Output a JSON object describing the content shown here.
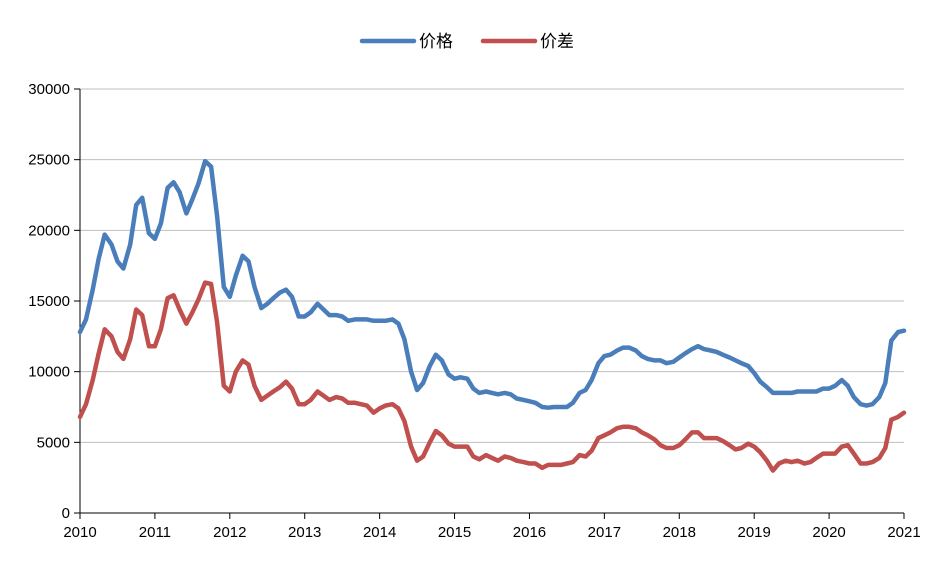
{
  "chart_data": {
    "type": "line",
    "title": "",
    "xlabel": "",
    "ylabel": "",
    "xlim": [
      2010,
      2021
    ],
    "ylim": [
      0,
      30000
    ],
    "x_ticks": [
      "2010",
      "2011",
      "2012",
      "2013",
      "2014",
      "2015",
      "2016",
      "2017",
      "2018",
      "2019",
      "2020",
      "2021"
    ],
    "y_ticks": [
      "0",
      "5000",
      "10000",
      "15000",
      "20000",
      "25000",
      "30000"
    ],
    "grid": "horizontal",
    "legend_position": "top-center",
    "series": [
      {
        "name": "价格",
        "color": "#4a7ebb",
        "points": [
          [
            2010.0,
            12800
          ],
          [
            2010.08,
            13700
          ],
          [
            2010.17,
            15800
          ],
          [
            2010.25,
            18000
          ],
          [
            2010.33,
            19700
          ],
          [
            2010.42,
            19000
          ],
          [
            2010.5,
            17800
          ],
          [
            2010.58,
            17300
          ],
          [
            2010.67,
            19000
          ],
          [
            2010.75,
            21800
          ],
          [
            2010.83,
            22300
          ],
          [
            2010.92,
            19800
          ],
          [
            2011.0,
            19400
          ],
          [
            2011.08,
            20500
          ],
          [
            2011.17,
            23000
          ],
          [
            2011.25,
            23400
          ],
          [
            2011.33,
            22700
          ],
          [
            2011.42,
            21200
          ],
          [
            2011.5,
            22200
          ],
          [
            2011.58,
            23300
          ],
          [
            2011.67,
            24900
          ],
          [
            2011.75,
            24500
          ],
          [
            2011.83,
            21000
          ],
          [
            2011.92,
            16000
          ],
          [
            2012.0,
            15300
          ],
          [
            2012.08,
            16800
          ],
          [
            2012.17,
            18200
          ],
          [
            2012.25,
            17800
          ],
          [
            2012.33,
            16000
          ],
          [
            2012.42,
            14500
          ],
          [
            2012.5,
            14800
          ],
          [
            2012.58,
            15200
          ],
          [
            2012.67,
            15600
          ],
          [
            2012.75,
            15800
          ],
          [
            2012.83,
            15300
          ],
          [
            2012.92,
            13900
          ],
          [
            2013.0,
            13900
          ],
          [
            2013.08,
            14200
          ],
          [
            2013.17,
            14800
          ],
          [
            2013.25,
            14400
          ],
          [
            2013.33,
            14000
          ],
          [
            2013.42,
            14000
          ],
          [
            2013.5,
            13900
          ],
          [
            2013.58,
            13600
          ],
          [
            2013.67,
            13700
          ],
          [
            2013.75,
            13700
          ],
          [
            2013.83,
            13700
          ],
          [
            2013.92,
            13600
          ],
          [
            2014.0,
            13600
          ],
          [
            2014.08,
            13600
          ],
          [
            2014.17,
            13700
          ],
          [
            2014.25,
            13400
          ],
          [
            2014.33,
            12300
          ],
          [
            2014.42,
            10000
          ],
          [
            2014.5,
            8700
          ],
          [
            2014.58,
            9200
          ],
          [
            2014.67,
            10400
          ],
          [
            2014.75,
            11200
          ],
          [
            2014.83,
            10800
          ],
          [
            2014.92,
            9800
          ],
          [
            2015.0,
            9500
          ],
          [
            2015.08,
            9600
          ],
          [
            2015.17,
            9500
          ],
          [
            2015.25,
            8800
          ],
          [
            2015.33,
            8500
          ],
          [
            2015.42,
            8600
          ],
          [
            2015.5,
            8500
          ],
          [
            2015.58,
            8400
          ],
          [
            2015.67,
            8500
          ],
          [
            2015.75,
            8400
          ],
          [
            2015.83,
            8100
          ],
          [
            2015.92,
            8000
          ],
          [
            2016.0,
            7900
          ],
          [
            2016.08,
            7800
          ],
          [
            2016.17,
            7500
          ],
          [
            2016.25,
            7450
          ],
          [
            2016.33,
            7500
          ],
          [
            2016.42,
            7500
          ],
          [
            2016.5,
            7500
          ],
          [
            2016.58,
            7800
          ],
          [
            2016.67,
            8500
          ],
          [
            2016.75,
            8700
          ],
          [
            2016.83,
            9400
          ],
          [
            2016.92,
            10600
          ],
          [
            2017.0,
            11100
          ],
          [
            2017.08,
            11200
          ],
          [
            2017.17,
            11500
          ],
          [
            2017.25,
            11700
          ],
          [
            2017.33,
            11700
          ],
          [
            2017.42,
            11500
          ],
          [
            2017.5,
            11100
          ],
          [
            2017.58,
            10900
          ],
          [
            2017.67,
            10800
          ],
          [
            2017.75,
            10800
          ],
          [
            2017.83,
            10600
          ],
          [
            2017.92,
            10700
          ],
          [
            2018.0,
            11000
          ],
          [
            2018.08,
            11300
          ],
          [
            2018.17,
            11600
          ],
          [
            2018.25,
            11800
          ],
          [
            2018.33,
            11600
          ],
          [
            2018.42,
            11500
          ],
          [
            2018.5,
            11400
          ],
          [
            2018.58,
            11200
          ],
          [
            2018.67,
            11000
          ],
          [
            2018.75,
            10800
          ],
          [
            2018.83,
            10600
          ],
          [
            2018.92,
            10400
          ],
          [
            2019.0,
            9900
          ],
          [
            2019.08,
            9300
          ],
          [
            2019.17,
            8900
          ],
          [
            2019.25,
            8500
          ],
          [
            2019.33,
            8500
          ],
          [
            2019.42,
            8500
          ],
          [
            2019.5,
            8500
          ],
          [
            2019.58,
            8600
          ],
          [
            2019.67,
            8600
          ],
          [
            2019.75,
            8600
          ],
          [
            2019.83,
            8600
          ],
          [
            2019.92,
            8800
          ],
          [
            2020.0,
            8800
          ],
          [
            2020.08,
            9000
          ],
          [
            2020.17,
            9400
          ],
          [
            2020.25,
            9000
          ],
          [
            2020.33,
            8200
          ],
          [
            2020.42,
            7700
          ],
          [
            2020.5,
            7600
          ],
          [
            2020.58,
            7700
          ],
          [
            2020.67,
            8200
          ],
          [
            2020.75,
            9200
          ],
          [
            2020.83,
            12200
          ],
          [
            2020.92,
            12800
          ],
          [
            2021.0,
            12900
          ]
        ]
      },
      {
        "name": "价差",
        "color": "#c0504d",
        "points": [
          [
            2010.0,
            6800
          ],
          [
            2010.08,
            7700
          ],
          [
            2010.17,
            9400
          ],
          [
            2010.25,
            11300
          ],
          [
            2010.33,
            13000
          ],
          [
            2010.42,
            12500
          ],
          [
            2010.5,
            11400
          ],
          [
            2010.58,
            10900
          ],
          [
            2010.67,
            12300
          ],
          [
            2010.75,
            14400
          ],
          [
            2010.83,
            14000
          ],
          [
            2010.92,
            11800
          ],
          [
            2011.0,
            11800
          ],
          [
            2011.08,
            13000
          ],
          [
            2011.17,
            15200
          ],
          [
            2011.25,
            15400
          ],
          [
            2011.33,
            14400
          ],
          [
            2011.42,
            13400
          ],
          [
            2011.5,
            14200
          ],
          [
            2011.58,
            15100
          ],
          [
            2011.67,
            16300
          ],
          [
            2011.75,
            16200
          ],
          [
            2011.83,
            13500
          ],
          [
            2011.92,
            9000
          ],
          [
            2012.0,
            8600
          ],
          [
            2012.08,
            10000
          ],
          [
            2012.17,
            10800
          ],
          [
            2012.25,
            10500
          ],
          [
            2012.33,
            9000
          ],
          [
            2012.42,
            8000
          ],
          [
            2012.5,
            8300
          ],
          [
            2012.58,
            8600
          ],
          [
            2012.67,
            8900
          ],
          [
            2012.75,
            9300
          ],
          [
            2012.83,
            8800
          ],
          [
            2012.92,
            7700
          ],
          [
            2013.0,
            7700
          ],
          [
            2013.08,
            8000
          ],
          [
            2013.17,
            8600
          ],
          [
            2013.25,
            8300
          ],
          [
            2013.33,
            8000
          ],
          [
            2013.42,
            8200
          ],
          [
            2013.5,
            8100
          ],
          [
            2013.58,
            7800
          ],
          [
            2013.67,
            7800
          ],
          [
            2013.75,
            7700
          ],
          [
            2013.83,
            7600
          ],
          [
            2013.92,
            7100
          ],
          [
            2014.0,
            7400
          ],
          [
            2014.08,
            7600
          ],
          [
            2014.17,
            7700
          ],
          [
            2014.25,
            7400
          ],
          [
            2014.33,
            6500
          ],
          [
            2014.42,
            4700
          ],
          [
            2014.5,
            3700
          ],
          [
            2014.58,
            4000
          ],
          [
            2014.67,
            5000
          ],
          [
            2014.75,
            5800
          ],
          [
            2014.83,
            5500
          ],
          [
            2014.92,
            4900
          ],
          [
            2015.0,
            4700
          ],
          [
            2015.08,
            4700
          ],
          [
            2015.17,
            4700
          ],
          [
            2015.25,
            4000
          ],
          [
            2015.33,
            3800
          ],
          [
            2015.42,
            4100
          ],
          [
            2015.5,
            3900
          ],
          [
            2015.58,
            3700
          ],
          [
            2015.67,
            4000
          ],
          [
            2015.75,
            3900
          ],
          [
            2015.83,
            3700
          ],
          [
            2015.92,
            3600
          ],
          [
            2016.0,
            3500
          ],
          [
            2016.08,
            3500
          ],
          [
            2016.17,
            3200
          ],
          [
            2016.25,
            3400
          ],
          [
            2016.33,
            3400
          ],
          [
            2016.42,
            3400
          ],
          [
            2016.5,
            3500
          ],
          [
            2016.58,
            3600
          ],
          [
            2016.67,
            4100
          ],
          [
            2016.75,
            4000
          ],
          [
            2016.83,
            4400
          ],
          [
            2016.92,
            5300
          ],
          [
            2017.0,
            5500
          ],
          [
            2017.08,
            5700
          ],
          [
            2017.17,
            6000
          ],
          [
            2017.25,
            6100
          ],
          [
            2017.33,
            6100
          ],
          [
            2017.42,
            6000
          ],
          [
            2017.5,
            5700
          ],
          [
            2017.58,
            5500
          ],
          [
            2017.67,
            5200
          ],
          [
            2017.75,
            4800
          ],
          [
            2017.83,
            4600
          ],
          [
            2017.92,
            4600
          ],
          [
            2018.0,
            4800
          ],
          [
            2018.08,
            5200
          ],
          [
            2018.17,
            5700
          ],
          [
            2018.25,
            5700
          ],
          [
            2018.33,
            5300
          ],
          [
            2018.42,
            5300
          ],
          [
            2018.5,
            5300
          ],
          [
            2018.58,
            5100
          ],
          [
            2018.67,
            4800
          ],
          [
            2018.75,
            4500
          ],
          [
            2018.83,
            4600
          ],
          [
            2018.92,
            4900
          ],
          [
            2019.0,
            4700
          ],
          [
            2019.08,
            4300
          ],
          [
            2019.17,
            3700
          ],
          [
            2019.25,
            3000
          ],
          [
            2019.33,
            3500
          ],
          [
            2019.42,
            3700
          ],
          [
            2019.5,
            3600
          ],
          [
            2019.58,
            3700
          ],
          [
            2019.67,
            3500
          ],
          [
            2019.75,
            3600
          ],
          [
            2019.83,
            3900
          ],
          [
            2019.92,
            4200
          ],
          [
            2020.0,
            4200
          ],
          [
            2020.08,
            4200
          ],
          [
            2020.17,
            4700
          ],
          [
            2020.25,
            4800
          ],
          [
            2020.33,
            4200
          ],
          [
            2020.42,
            3500
          ],
          [
            2020.5,
            3500
          ],
          [
            2020.58,
            3600
          ],
          [
            2020.67,
            3900
          ],
          [
            2020.75,
            4600
          ],
          [
            2020.83,
            6600
          ],
          [
            2020.92,
            6800
          ],
          [
            2021.0,
            7100
          ]
        ]
      }
    ]
  }
}
